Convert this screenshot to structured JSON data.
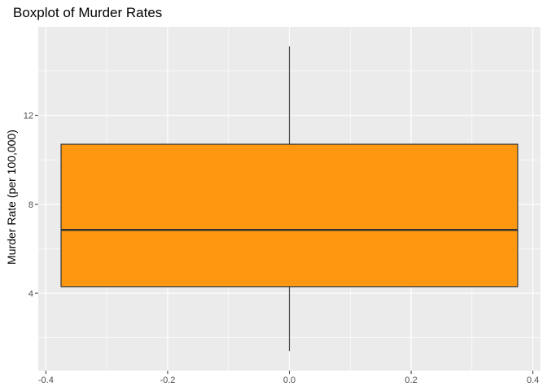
{
  "chart_data": {
    "type": "boxplot",
    "title": "Boxplot of Murder Rates",
    "xlabel": "",
    "ylabel": "Murder Rate (per 100,000)",
    "box": {
      "x_center": 0.0,
      "x_left": -0.375,
      "x_right": 0.375,
      "min": 1.4,
      "q1": 4.3,
      "median": 6.85,
      "q3": 10.7,
      "max": 15.1,
      "fill": "#FF9810",
      "stroke": "#333333"
    },
    "xlim": [
      -0.4125,
      0.4125
    ],
    "ylim": [
      0.525,
      15.975
    ],
    "x_ticks": [
      -0.4,
      -0.2,
      0.0,
      0.2,
      0.4
    ],
    "x_tick_labels": [
      "-0.4",
      "-0.2",
      "0.0",
      "0.2",
      "0.4"
    ],
    "x_minor": [
      -0.3,
      -0.1,
      0.1,
      0.3
    ],
    "y_ticks": [
      4,
      8,
      12
    ],
    "y_tick_labels": [
      "4",
      "8",
      "12"
    ],
    "y_minor": [
      2,
      6,
      10,
      14
    ],
    "grid": true,
    "panel_background": "#EBEBEB",
    "grid_color": "#FFFFFF"
  }
}
